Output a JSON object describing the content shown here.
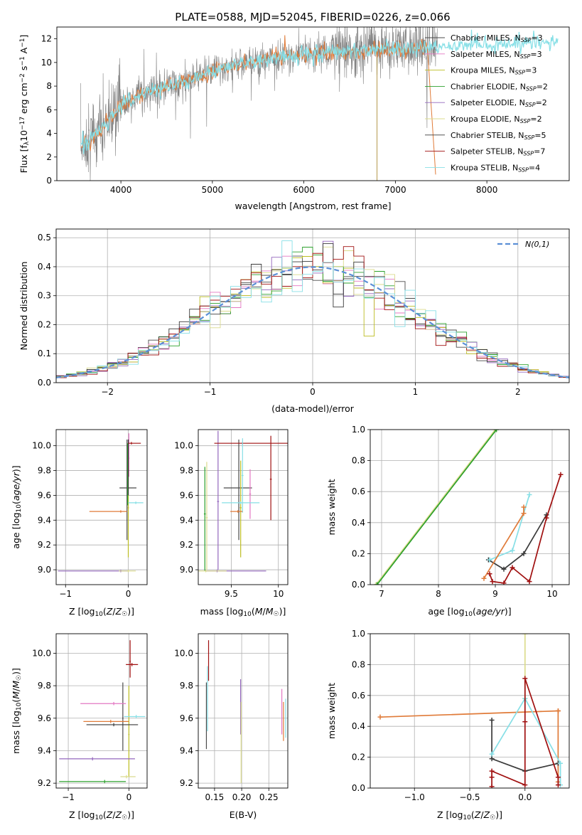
{
  "figure": {
    "title": "PLATE=0588, MJD=52045, FIBERID=0226, z=0.066"
  },
  "colors": {
    "Chabrier MILES": "#4b4b4b",
    "Salpeter MILES": "#e377c2",
    "Kroupa MILES": "#bcbd22",
    "Chabrier ELODIE": "#2ca02c",
    "Salpeter ELODIE": "#9467bd",
    "Kroupa ELODIE": "#dbdb8d",
    "Chabrier STELIB": "#3a3a3a",
    "Salpeter STELIB": "#a01010",
    "Kroupa STELIB": "#86dfe6",
    "data": "#808080",
    "orange": "#e07b39",
    "gaussian": "#5b8fd6"
  },
  "chart_data": [
    {
      "id": "spectrum",
      "type": "line",
      "title": "PLATE=0588, MJD=52045, FIBERID=0226, z=0.066",
      "xlabel": "wavelength [Angstrom, rest frame]",
      "ylabel": "Flux [f_λ 10^-17 erg cm^-2 s^-1 A^-1]",
      "xlim": [
        3300,
        8900
      ],
      "ylim": [
        0,
        13
      ],
      "xticks": [
        4000,
        5000,
        6000,
        7000,
        8000
      ],
      "yticks": [
        0,
        2,
        4,
        6,
        8,
        10,
        12
      ],
      "grid": false,
      "legend_position": "top-right",
      "legend": [
        {
          "name": "Chabrier MILES",
          "nssp": "3"
        },
        {
          "name": "Salpeter MILES",
          "nssp": "3"
        },
        {
          "name": "Kroupa MILES",
          "nssp": "3"
        },
        {
          "name": "Chabrier ELODIE",
          "nssp": "2"
        },
        {
          "name": "Salpeter ELODIE",
          "nssp": "2"
        },
        {
          "name": "Kroupa ELODIE",
          "nssp": "2"
        },
        {
          "name": "Chabrier STELIB",
          "nssp": "5"
        },
        {
          "name": "Salpeter STELIB",
          "nssp": "7"
        },
        {
          "name": "Kroupa STELIB",
          "nssp": "4"
        }
      ],
      "continuum": [
        [
          3560,
          2.8
        ],
        [
          3800,
          4.4
        ],
        [
          4000,
          6.3
        ],
        [
          4200,
          7.3
        ],
        [
          4500,
          7.9
        ],
        [
          4800,
          8.6
        ],
        [
          5000,
          9.3
        ],
        [
          5300,
          9.9
        ],
        [
          5600,
          10.3
        ],
        [
          6000,
          10.7
        ],
        [
          6500,
          11.0
        ],
        [
          7000,
          11.2
        ],
        [
          7400,
          11.3
        ],
        [
          7800,
          11.5
        ],
        [
          8200,
          11.6
        ],
        [
          8500,
          11.7
        ],
        [
          8800,
          11.7
        ]
      ]
    },
    {
      "id": "residuals",
      "type": "step",
      "xlabel": "(data-model)/error",
      "ylabel": "Normed distribution",
      "xlim": [
        -2.5,
        2.5
      ],
      "ylim": [
        0,
        0.53
      ],
      "xticks": [
        -2,
        -1,
        0,
        1,
        2
      ],
      "yticks": [
        0.0,
        0.1,
        0.2,
        0.3,
        0.4,
        0.5
      ],
      "grid": true,
      "legend_position": "top-right",
      "gaussian_label": "N(0,1)",
      "bin_width": 0.1
    },
    {
      "id": "age_vs_Z",
      "type": "errorbar",
      "xlabel": "Z [log10(Z/Z☉)]",
      "ylabel": "age [log10(age/yr)]",
      "xlim": [
        -1.15,
        0.3
      ],
      "ylim": [
        8.88,
        10.13
      ],
      "xticks": [
        -1,
        0
      ],
      "yticks": [
        9.0,
        9.2,
        9.4,
        9.6,
        9.8,
        10.0
      ],
      "grid": true,
      "points": [
        {
          "model": "Chabrier MILES",
          "x": -0.02,
          "xerr": [
            0.12,
            0.15
          ],
          "y": 9.66,
          "yerr": [
            0.42,
            0.39
          ]
        },
        {
          "model": "Salpeter MILES",
          "x": 0.01,
          "xerr": [
            0.01,
            0.01
          ],
          "y": 9.9,
          "yerr": [
            0.15,
            0.2
          ]
        },
        {
          "model": "Kroupa MILES",
          "x": 0.0,
          "xerr": [
            0.01,
            0.01
          ],
          "y": 9.5,
          "yerr": [
            0.4,
            0.38
          ]
        },
        {
          "model": "Chabrier ELODIE",
          "x": -0.01,
          "xerr": [
            0.01,
            0.01
          ],
          "y": 9.72,
          "yerr": [
            0.2,
            0.3
          ]
        },
        {
          "model": "Salpeter ELODIE",
          "x": -0.12,
          "xerr": [
            1.0,
            0.12
          ],
          "y": 8.99,
          "yerr": [
            0.01,
            0.01
          ]
        },
        {
          "model": "Kroupa ELODIE",
          "x": 0.0,
          "xerr": [
            0.15,
            0.12
          ],
          "y": 8.99,
          "yerr": [
            0.01,
            0.01
          ]
        },
        {
          "model": "Chabrier STELIB",
          "x": 0.0,
          "xerr": [
            0.01,
            0.01
          ],
          "y": 9.8,
          "yerr": [
            0.2,
            0.25
          ]
        },
        {
          "model": "Salpeter STELIB",
          "x": 0.05,
          "xerr": [
            0.05,
            0.15
          ],
          "y": 10.02,
          "yerr": [
            0.01,
            0.01
          ]
        },
        {
          "model": "Kroupa STELIB",
          "x": 0.12,
          "xerr": [
            0.12,
            0.12
          ],
          "y": 9.54,
          "yerr": [
            0.01,
            0.01
          ]
        },
        {
          "model": "orange",
          "x": -0.12,
          "xerr": [
            0.5,
            0.1
          ],
          "y": 9.47,
          "yerr": [
            0.01,
            0.01
          ]
        }
      ]
    },
    {
      "id": "age_vs_mass",
      "type": "errorbar",
      "xlabel": "mass [log10(M/M☉)]",
      "ylabel": "",
      "xlim": [
        9.15,
        10.1
      ],
      "ylim": [
        8.88,
        10.13
      ],
      "xticks": [
        9.5,
        10.0
      ],
      "yticks": [
        9.0,
        9.2,
        9.4,
        9.6,
        9.8,
        10.0
      ],
      "grid": true,
      "points": [
        {
          "model": "Chabrier MILES",
          "x": 9.58,
          "xerr": [
            0.16,
            0.14
          ],
          "y": 9.66,
          "yerr": [
            0.42,
            0.39
          ]
        },
        {
          "model": "Salpeter MILES",
          "x": 9.7,
          "xerr": [
            0.01,
            0.01
          ],
          "y": 9.61,
          "yerr": [
            0.2,
            0.2
          ]
        },
        {
          "model": "Kroupa MILES",
          "x": 9.6,
          "xerr": [
            0.01,
            0.01
          ],
          "y": 9.5,
          "yerr": [
            0.4,
            0.38
          ]
        },
        {
          "model": "Chabrier ELODIE",
          "x": 9.22,
          "xerr": [
            0.01,
            0.01
          ],
          "y": 9.45,
          "yerr": [
            0.46,
            0.38
          ]
        },
        {
          "model": "Salpeter ELODIE",
          "x": 9.36,
          "xerr": [
            0.01,
            0.01
          ],
          "y": 9.55,
          "yerr": [
            0.55,
            0.57
          ]
        },
        {
          "model": "Kroupa ELODIE",
          "x": 9.24,
          "xerr": [
            0.01,
            0.01
          ],
          "y": 9.42,
          "yerr": [
            0.42,
            0.45
          ]
        },
        {
          "model": "Salpeter ELODIE",
          "x": 9.35,
          "xerr": [
            0.12,
            0.52
          ],
          "y": 8.99,
          "yerr": [
            0.01,
            0.01
          ]
        },
        {
          "model": "Kroupa ELODIE",
          "x": 9.23,
          "xerr": [
            0.08,
            0.22
          ],
          "y": 8.99,
          "yerr": [
            0.01,
            0.01
          ]
        },
        {
          "model": "Salpeter STELIB",
          "x": 9.62,
          "xerr": [
            0.3,
            0.48
          ],
          "y": 10.02,
          "yerr": [
            0.01,
            0.01
          ]
        },
        {
          "model": "Salpeter STELIB",
          "x": 9.92,
          "xerr": [
            0.01,
            0.01
          ],
          "y": 9.73,
          "yerr": [
            0.33,
            0.35
          ]
        },
        {
          "model": "Kroupa STELIB",
          "x": 9.6,
          "xerr": [
            0.2,
            0.2
          ],
          "y": 9.54,
          "yerr": [
            0.01,
            0.01
          ]
        },
        {
          "model": "Kroupa STELIB",
          "x": 9.62,
          "xerr": [
            0.01,
            0.01
          ],
          "y": 9.76,
          "yerr": [
            0.3,
            0.3
          ]
        },
        {
          "model": "orange",
          "x": 9.57,
          "xerr": [
            0.08,
            0.05
          ],
          "y": 9.47,
          "yerr": [
            0.01,
            0.01
          ]
        }
      ]
    },
    {
      "id": "massweight_vs_age",
      "type": "line",
      "xlabel": "age [log10(age/yr)]",
      "ylabel": "mass weight",
      "xlim": [
        6.8,
        10.3
      ],
      "ylim": [
        0,
        1
      ],
      "xticks": [
        7,
        8,
        9,
        10
      ],
      "yticks": [
        0.0,
        0.2,
        0.4,
        0.6,
        0.8,
        1.0
      ],
      "grid": true,
      "series": [
        {
          "model": "Kroupa ELODIE",
          "x": [
            6.9,
            9.0
          ],
          "y": [
            0.0,
            1.0
          ]
        },
        {
          "model": "Chabrier ELODIE",
          "x": [
            6.92,
            9.02
          ],
          "y": [
            0.0,
            1.0
          ]
        },
        {
          "model": "Chabrier STELIB",
          "x": [
            8.88,
            9.15,
            9.5,
            9.9
          ],
          "y": [
            0.16,
            0.1,
            0.2,
            0.45
          ]
        },
        {
          "model": "Kroupa STELIB",
          "x": [
            8.9,
            9.3,
            9.6
          ],
          "y": [
            0.16,
            0.22,
            0.58
          ]
        },
        {
          "model": "orange",
          "x": [
            8.8,
            9.5,
            9.5
          ],
          "y": [
            0.04,
            0.46,
            0.5
          ]
        },
        {
          "model": "Salpeter STELIB",
          "x": [
            8.9,
            8.95,
            9.15,
            9.3,
            9.6,
            9.9,
            10.15
          ],
          "y": [
            0.07,
            0.02,
            0.01,
            0.11,
            0.02,
            0.43,
            0.71
          ]
        }
      ]
    },
    {
      "id": "mass_vs_Z",
      "type": "errorbar",
      "xlabel": "Z [log10(Z/Z☉)]",
      "ylabel": "mass [log10(M/M☉)]",
      "xlim": [
        -1.2,
        0.3
      ],
      "ylim": [
        9.17,
        10.12
      ],
      "xticks": [
        -1,
        0
      ],
      "yticks": [
        9.2,
        9.4,
        9.6,
        9.8,
        10.0
      ],
      "grid": true,
      "points": [
        {
          "model": "Chabrier MILES",
          "x": -0.1,
          "xerr": [
            0.01,
            0.01
          ],
          "y": 9.6,
          "yerr": [
            0.2,
            0.22
          ]
        },
        {
          "model": "Salpeter MILES",
          "x": -0.25,
          "xerr": [
            0.55,
            0.2
          ],
          "y": 9.69,
          "yerr": [
            0.01,
            0.01
          ]
        },
        {
          "model": "Kroupa MILES",
          "x": 0.0,
          "xerr": [
            0.01,
            0.01
          ],
          "y": 9.5,
          "yerr": [
            0.26,
            0.3
          ]
        },
        {
          "model": "Chabrier ELODIE",
          "x": -0.4,
          "xerr": [
            0.75,
            0.35
          ],
          "y": 9.21,
          "yerr": [
            0.01,
            0.01
          ]
        },
        {
          "model": "Salpeter ELODIE",
          "x": -0.6,
          "xerr": [
            0.55,
            0.7
          ],
          "y": 9.35,
          "yerr": [
            0.01,
            0.01
          ]
        },
        {
          "model": "Kroupa ELODIE",
          "x": -0.04,
          "xerr": [
            0.1,
            0.15
          ],
          "y": 9.24,
          "yerr": [
            0.01,
            0.01
          ]
        },
        {
          "model": "Chabrier STELIB",
          "x": -0.25,
          "xerr": [
            0.45,
            0.4
          ],
          "y": 9.56,
          "yerr": [
            0.01,
            0.01
          ]
        },
        {
          "model": "Salpeter STELIB",
          "x": 0.05,
          "xerr": [
            0.1,
            0.1
          ],
          "y": 9.93,
          "yerr": [
            0.01,
            0.01
          ]
        },
        {
          "model": "Salpeter STELIB",
          "x": 0.02,
          "xerr": [
            0.01,
            0.01
          ],
          "y": 9.95,
          "yerr": [
            0.1,
            0.13
          ]
        },
        {
          "model": "Kroupa STELIB",
          "x": 0.12,
          "xerr": [
            0.2,
            0.15
          ],
          "y": 9.61,
          "yerr": [
            0.01,
            0.01
          ]
        },
        {
          "model": "orange",
          "x": -0.3,
          "xerr": [
            0.45,
            0.3
          ],
          "y": 9.58,
          "yerr": [
            0.01,
            0.01
          ]
        }
      ]
    },
    {
      "id": "mass_vs_ebv",
      "type": "errorbar",
      "xlabel": "E(B-V)",
      "ylabel": "",
      "xlim": [
        0.12,
        0.285
      ],
      "ylim": [
        9.17,
        10.12
      ],
      "xticks": [
        0.15,
        0.2,
        0.25
      ],
      "yticks": [
        9.2,
        9.4,
        9.6,
        9.8,
        10.0
      ],
      "grid": true,
      "points": [
        {
          "model": "Chabrier MILES",
          "x": 0.135,
          "xerr": [
            0.0,
            0.0
          ],
          "y": 9.61,
          "yerr": [
            0.2,
            0.21
          ]
        },
        {
          "model": "Kroupa STELIB",
          "x": 0.137,
          "xerr": [
            0.0,
            0.0
          ],
          "y": 9.75,
          "yerr": [
            0.23,
            0.17
          ]
        },
        {
          "model": "Salpeter STELIB",
          "x": 0.139,
          "xerr": [
            0.0,
            0.0
          ],
          "y": 9.95,
          "yerr": [
            0.12,
            0.13
          ]
        },
        {
          "model": "Salpeter ELODIE",
          "x": 0.198,
          "xerr": [
            0.0,
            0.0
          ],
          "y": 9.67,
          "yerr": [
            0.17,
            0.17
          ]
        },
        {
          "model": "Kroupa ELODIE",
          "x": 0.199,
          "xerr": [
            0.0,
            0.0
          ],
          "y": 9.45,
          "yerr": [
            0.25,
            0.25
          ]
        },
        {
          "model": "Salpeter MILES",
          "x": 0.274,
          "xerr": [
            0.0,
            0.0
          ],
          "y": 9.64,
          "yerr": [
            0.14,
            0.14
          ]
        },
        {
          "model": "orange",
          "x": 0.277,
          "xerr": [
            0.0,
            0.0
          ],
          "y": 9.58,
          "yerr": [
            0.12,
            0.12
          ]
        },
        {
          "model": "Kroupa STELIB",
          "x": 0.281,
          "xerr": [
            0.0,
            0.0
          ],
          "y": 9.6,
          "yerr": [
            0.12,
            0.12
          ]
        }
      ]
    },
    {
      "id": "massweight_vs_Z",
      "type": "line",
      "xlabel": "Z [log10(Z/Z☉)]",
      "ylabel": "mass weight",
      "xlim": [
        -1.4,
        0.4
      ],
      "ylim": [
        0,
        1
      ],
      "xticks": [
        -1.0,
        -0.5,
        0.0
      ],
      "yticks": [
        0.0,
        0.2,
        0.4,
        0.6,
        0.8,
        1.0
      ],
      "grid": true,
      "series": [
        {
          "model": "orange",
          "x": [
            -1.31,
            0.3,
            0.3,
            0.3
          ],
          "y": [
            0.46,
            0.5,
            0.04,
            0.5
          ]
        },
        {
          "model": "Kroupa ELODIE",
          "x": [
            0.0,
            0.0
          ],
          "y": [
            0.58,
            1.0
          ]
        },
        {
          "model": "Chabrier STELIB",
          "x": [
            -0.3,
            -0.3,
            0.0,
            0.3
          ],
          "y": [
            0.44,
            0.19,
            0.11,
            0.16
          ]
        },
        {
          "model": "Kroupa STELIB",
          "x": [
            -0.3,
            0.0,
            0.32,
            0.32
          ],
          "y": [
            0.22,
            0.58,
            0.16,
            0.02
          ]
        },
        {
          "model": "Salpeter STELIB",
          "x": [
            -0.3,
            -0.3,
            -0.3,
            0.0,
            0.0,
            0.0,
            0.3,
            0.3
          ],
          "y": [
            0.07,
            0.01,
            0.11,
            0.02,
            0.43,
            0.71,
            0.07,
            0.02
          ]
        }
      ]
    }
  ]
}
